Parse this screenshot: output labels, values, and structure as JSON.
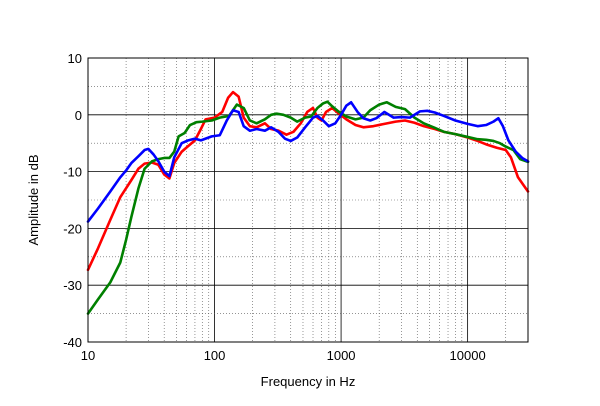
{
  "chart_data": {
    "type": "line",
    "title": "",
    "xlabel": "Frequency in Hz",
    "ylabel": "Amplitude in dB",
    "xscale": "log",
    "xlim": [
      10,
      30000
    ],
    "ylim": [
      -40,
      10
    ],
    "grid": true,
    "legend": "none",
    "x_tick_labels": [
      "10",
      "100",
      "1000",
      "10000"
    ],
    "y_tick_labels": [
      "10",
      "0",
      "-10",
      "-20",
      "-30",
      "-40"
    ],
    "series": [
      {
        "color": "#ff0000",
        "points": [
          [
            10,
            -27.3
          ],
          [
            12,
            -23.5
          ],
          [
            15,
            -18.5
          ],
          [
            18,
            -14.5
          ],
          [
            22,
            -11.5
          ],
          [
            25,
            -9.5
          ],
          [
            28,
            -8.6
          ],
          [
            32,
            -8.4
          ],
          [
            36,
            -8.8
          ],
          [
            40,
            -10.5
          ],
          [
            44,
            -11.2
          ],
          [
            48,
            -8.5
          ],
          [
            55,
            -6.5
          ],
          [
            62,
            -5.5
          ],
          [
            70,
            -4.5
          ],
          [
            78,
            -2.5
          ],
          [
            85,
            -0.8
          ],
          [
            100,
            -0.5
          ],
          [
            115,
            0.5
          ],
          [
            128,
            3.0
          ],
          [
            140,
            4.0
          ],
          [
            155,
            3.2
          ],
          [
            170,
            -0.5
          ],
          [
            190,
            -2.0
          ],
          [
            215,
            -2.2
          ],
          [
            250,
            -1.5
          ],
          [
            280,
            -2.5
          ],
          [
            320,
            -2.8
          ],
          [
            370,
            -3.5
          ],
          [
            420,
            -3.0
          ],
          [
            480,
            -1.5
          ],
          [
            540,
            0.5
          ],
          [
            600,
            1.2
          ],
          [
            650,
            -0.5
          ],
          [
            700,
            -1.0
          ],
          [
            760,
            0.5
          ],
          [
            850,
            1.2
          ],
          [
            950,
            0.3
          ],
          [
            1100,
            -0.8
          ],
          [
            1300,
            -1.8
          ],
          [
            1500,
            -2.2
          ],
          [
            1800,
            -2.0
          ],
          [
            2200,
            -1.6
          ],
          [
            2700,
            -1.2
          ],
          [
            3200,
            -1.0
          ],
          [
            3800,
            -1.4
          ],
          [
            4500,
            -2.0
          ],
          [
            5500,
            -2.5
          ],
          [
            6500,
            -3.0
          ],
          [
            8000,
            -3.4
          ],
          [
            10000,
            -4.0
          ],
          [
            12000,
            -4.6
          ],
          [
            14000,
            -5.2
          ],
          [
            17000,
            -5.8
          ],
          [
            20000,
            -6.2
          ],
          [
            22000,
            -7.5
          ],
          [
            25000,
            -11.0
          ],
          [
            30000,
            -13.5
          ]
        ]
      },
      {
        "color": "#008000",
        "points": [
          [
            10,
            -35.0
          ],
          [
            12,
            -32.5
          ],
          [
            15,
            -29.5
          ],
          [
            18,
            -26.0
          ],
          [
            20,
            -22.0
          ],
          [
            22,
            -18.0
          ],
          [
            25,
            -13.0
          ],
          [
            28,
            -9.5
          ],
          [
            32,
            -8.2
          ],
          [
            36,
            -7.8
          ],
          [
            40,
            -7.6
          ],
          [
            44,
            -7.6
          ],
          [
            48,
            -6.5
          ],
          [
            52,
            -3.8
          ],
          [
            58,
            -3.2
          ],
          [
            64,
            -1.8
          ],
          [
            72,
            -1.3
          ],
          [
            80,
            -1.2
          ],
          [
            95,
            -1.0
          ],
          [
            110,
            -0.5
          ],
          [
            130,
            -0.2
          ],
          [
            150,
            1.8
          ],
          [
            170,
            1.2
          ],
          [
            190,
            -1.0
          ],
          [
            215,
            -1.5
          ],
          [
            250,
            -0.8
          ],
          [
            280,
            0.0
          ],
          [
            310,
            0.2
          ],
          [
            350,
            0.0
          ],
          [
            400,
            -0.5
          ],
          [
            450,
            -1.2
          ],
          [
            520,
            -0.5
          ],
          [
            580,
            -0.3
          ],
          [
            650,
            1.2
          ],
          [
            720,
            2.0
          ],
          [
            780,
            2.3
          ],
          [
            850,
            1.5
          ],
          [
            950,
            0.6
          ],
          [
            1100,
            -0.3
          ],
          [
            1300,
            -0.8
          ],
          [
            1500,
            -0.5
          ],
          [
            1700,
            0.8
          ],
          [
            2000,
            1.8
          ],
          [
            2300,
            2.2
          ],
          [
            2700,
            1.4
          ],
          [
            3200,
            1.0
          ],
          [
            3800,
            -0.5
          ],
          [
            4500,
            -1.5
          ],
          [
            5500,
            -2.3
          ],
          [
            6500,
            -3.0
          ],
          [
            8000,
            -3.4
          ],
          [
            10000,
            -3.9
          ],
          [
            12000,
            -4.3
          ],
          [
            14000,
            -4.4
          ],
          [
            16000,
            -4.6
          ],
          [
            18000,
            -5.0
          ],
          [
            20000,
            -5.6
          ],
          [
            23000,
            -6.2
          ],
          [
            26000,
            -7.8
          ],
          [
            30000,
            -8.3
          ]
        ]
      },
      {
        "color": "#0000ff",
        "points": [
          [
            10,
            -18.8
          ],
          [
            12,
            -16.5
          ],
          [
            15,
            -13.5
          ],
          [
            18,
            -11.0
          ],
          [
            20,
            -9.8
          ],
          [
            22,
            -8.5
          ],
          [
            25,
            -7.3
          ],
          [
            28,
            -6.2
          ],
          [
            30,
            -6.0
          ],
          [
            33,
            -7.0
          ],
          [
            36,
            -8.2
          ],
          [
            40,
            -10.0
          ],
          [
            44,
            -10.8
          ],
          [
            48,
            -7.5
          ],
          [
            55,
            -5.0
          ],
          [
            62,
            -4.5
          ],
          [
            70,
            -4.2
          ],
          [
            78,
            -4.5
          ],
          [
            85,
            -4.2
          ],
          [
            95,
            -3.8
          ],
          [
            110,
            -3.6
          ],
          [
            125,
            -1.0
          ],
          [
            140,
            0.8
          ],
          [
            155,
            0.5
          ],
          [
            170,
            -2.0
          ],
          [
            190,
            -2.8
          ],
          [
            215,
            -2.5
          ],
          [
            250,
            -2.8
          ],
          [
            280,
            -2.2
          ],
          [
            320,
            -3.0
          ],
          [
            360,
            -4.2
          ],
          [
            400,
            -4.6
          ],
          [
            450,
            -4.0
          ],
          [
            520,
            -2.2
          ],
          [
            600,
            -0.5
          ],
          [
            650,
            -0.2
          ],
          [
            720,
            -1.0
          ],
          [
            800,
            -2.0
          ],
          [
            900,
            -1.5
          ],
          [
            1000,
            0.0
          ],
          [
            1100,
            1.6
          ],
          [
            1200,
            2.2
          ],
          [
            1350,
            0.5
          ],
          [
            1500,
            -0.6
          ],
          [
            1700,
            -1.0
          ],
          [
            1900,
            -0.6
          ],
          [
            2200,
            0.5
          ],
          [
            2600,
            -0.5
          ],
          [
            3000,
            -0.4
          ],
          [
            3500,
            -0.5
          ],
          [
            4200,
            0.6
          ],
          [
            4800,
            0.7
          ],
          [
            5500,
            0.4
          ],
          [
            6500,
            -0.2
          ],
          [
            8000,
            -1.0
          ],
          [
            10000,
            -1.6
          ],
          [
            12000,
            -2.0
          ],
          [
            14000,
            -1.8
          ],
          [
            16000,
            -1.2
          ],
          [
            17500,
            -0.6
          ],
          [
            19000,
            -2.0
          ],
          [
            21000,
            -4.5
          ],
          [
            24000,
            -6.5
          ],
          [
            27000,
            -7.6
          ],
          [
            30000,
            -8.2
          ]
        ]
      }
    ]
  }
}
